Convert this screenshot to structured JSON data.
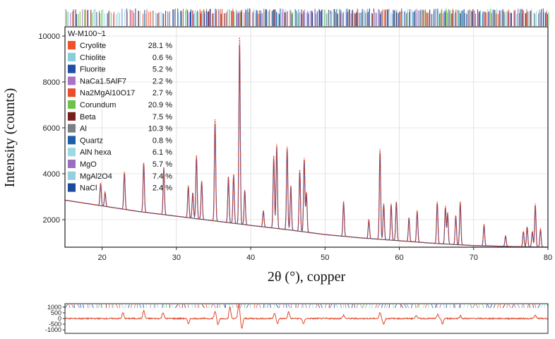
{
  "chart_data": {
    "type": "line",
    "sample_name": "W-M100~1",
    "xlabel": "2θ (°), copper",
    "ylabel": "Intensity (counts)",
    "xlim": [
      15,
      80
    ],
    "ylim": [
      800,
      10400
    ],
    "x_ticks": [
      "20",
      "30",
      "40",
      "50",
      "60",
      "70",
      "80"
    ],
    "y_ticks": [
      "2000",
      "4000",
      "6000",
      "8000",
      "10000"
    ],
    "baseline": [
      [
        15,
        2850
      ],
      [
        20,
        2600
      ],
      [
        25,
        2350
      ],
      [
        30,
        2150
      ],
      [
        35,
        1950
      ],
      [
        40,
        1750
      ],
      [
        45,
        1560
      ],
      [
        50,
        1350
      ],
      [
        55,
        1200
      ],
      [
        60,
        1080
      ],
      [
        65,
        960
      ],
      [
        70,
        870
      ],
      [
        75,
        830
      ],
      [
        80,
        800
      ]
    ],
    "peaks": [
      [
        19.8,
        3600
      ],
      [
        20.4,
        3200
      ],
      [
        23.0,
        4100
      ],
      [
        25.6,
        4500
      ],
      [
        28.3,
        4300
      ],
      [
        31.6,
        3500
      ],
      [
        32.2,
        3200
      ],
      [
        32.7,
        4800
      ],
      [
        33.4,
        3700
      ],
      [
        35.2,
        6400
      ],
      [
        37.0,
        3900
      ],
      [
        37.7,
        4000
      ],
      [
        38.5,
        10000
      ],
      [
        39.2,
        3300
      ],
      [
        41.7,
        2400
      ],
      [
        43.1,
        4800
      ],
      [
        43.5,
        5300
      ],
      [
        44.9,
        5200
      ],
      [
        45.4,
        3500
      ],
      [
        46.6,
        4200
      ],
      [
        47.2,
        4700
      ],
      [
        47.5,
        3200
      ],
      [
        52.5,
        2800
      ],
      [
        55.9,
        2000
      ],
      [
        57.4,
        5100
      ],
      [
        57.9,
        2700
      ],
      [
        58.9,
        2700
      ],
      [
        59.6,
        2800
      ],
      [
        61.3,
        2100
      ],
      [
        62.4,
        2400
      ],
      [
        65.1,
        2800
      ],
      [
        66.2,
        2600
      ],
      [
        66.5,
        2300
      ],
      [
        67.6,
        2200
      ],
      [
        68.2,
        2800
      ],
      [
        71.4,
        1800
      ],
      [
        74.3,
        1300
      ],
      [
        76.7,
        1500
      ],
      [
        77.2,
        1700
      ],
      [
        77.9,
        1500
      ],
      [
        78.3,
        2700
      ],
      [
        79.0,
        1600
      ]
    ],
    "residual": {
      "ylim": [
        -1300,
        1300
      ],
      "y_ticks": [
        "1000",
        "500",
        "0",
        "-500",
        "-1000"
      ],
      "spikes": [
        [
          22.8,
          500
        ],
        [
          25.6,
          700
        ],
        [
          28.2,
          550
        ],
        [
          31.6,
          -450
        ],
        [
          35.2,
          650
        ],
        [
          35.6,
          -550
        ],
        [
          37.2,
          1000
        ],
        [
          38.4,
          1300
        ],
        [
          38.8,
          -900
        ],
        [
          43.2,
          500
        ],
        [
          43.6,
          -450
        ],
        [
          45.1,
          600
        ],
        [
          47.1,
          -500
        ],
        [
          52.5,
          300
        ],
        [
          57.4,
          500
        ],
        [
          57.9,
          -500
        ],
        [
          62.3,
          300
        ],
        [
          65.2,
          350
        ],
        [
          65.8,
          -500
        ],
        [
          68.2,
          250
        ],
        [
          78.3,
          300
        ]
      ]
    },
    "legend": {
      "placement": "top-left",
      "entries": [
        {
          "name": "Cryolite",
          "value": "28.1 %",
          "color": "#f0522c"
        },
        {
          "name": "Chiolite",
          "value": "0.6 %",
          "color": "#86cfd9"
        },
        {
          "name": "Fluorite",
          "value": "5.2 %",
          "color": "#1f4fa8"
        },
        {
          "name": "NaCa1.5AlF7",
          "value": "2.2 %",
          "color": "#a974c6"
        },
        {
          "name": "Na2MgAl10O17",
          "value": "2.7 %",
          "color": "#e94e2f"
        },
        {
          "name": "Corundum",
          "value": "20.9 %",
          "color": "#6cc24a"
        },
        {
          "name": "Beta",
          "value": "7.5 %",
          "color": "#7b1f1a"
        },
        {
          "name": "Al",
          "value": "10.3 %",
          "color": "#7a7f86"
        },
        {
          "name": "Quartz",
          "value": "0.8 %",
          "color": "#1e5ea8"
        },
        {
          "name": "AlN hexa",
          "value": "6.1 %",
          "color": "#9fd8e2"
        },
        {
          "name": "MgO",
          "value": "5.7 %",
          "color": "#9b6fc0"
        },
        {
          "name": "MgAl2O4",
          "value": "7.4 %",
          "color": "#94cfe0"
        },
        {
          "name": "NaCl",
          "value": "2.4 %",
          "color": "#1c4a9c"
        }
      ]
    },
    "colors": {
      "observed": "#e2482a",
      "calculated": "#2c3e9e",
      "background": "#555555",
      "frame": "#222222",
      "grid": "#cfcfcf"
    }
  }
}
